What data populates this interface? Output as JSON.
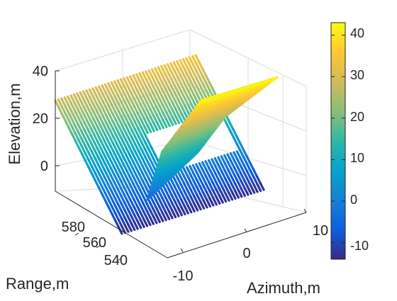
{
  "chart_data": {
    "type": "3d-scatter",
    "xlabel": "Azimuth,m",
    "ylabel": "Range,m",
    "zlabel": "Elevation,m",
    "x_ticks": [
      "-10",
      "0",
      "10"
    ],
    "y_ticks": [
      "540",
      "560",
      "580"
    ],
    "z_ticks": [
      "0",
      "20",
      "40"
    ],
    "colorbar": {
      "colormap": "parula",
      "range": [
        -14,
        43
      ],
      "ticks": [
        "-10",
        "0",
        "10",
        "20",
        "30",
        "40"
      ]
    },
    "elevation_range": [
      -14,
      43
    ],
    "grid": true
  }
}
